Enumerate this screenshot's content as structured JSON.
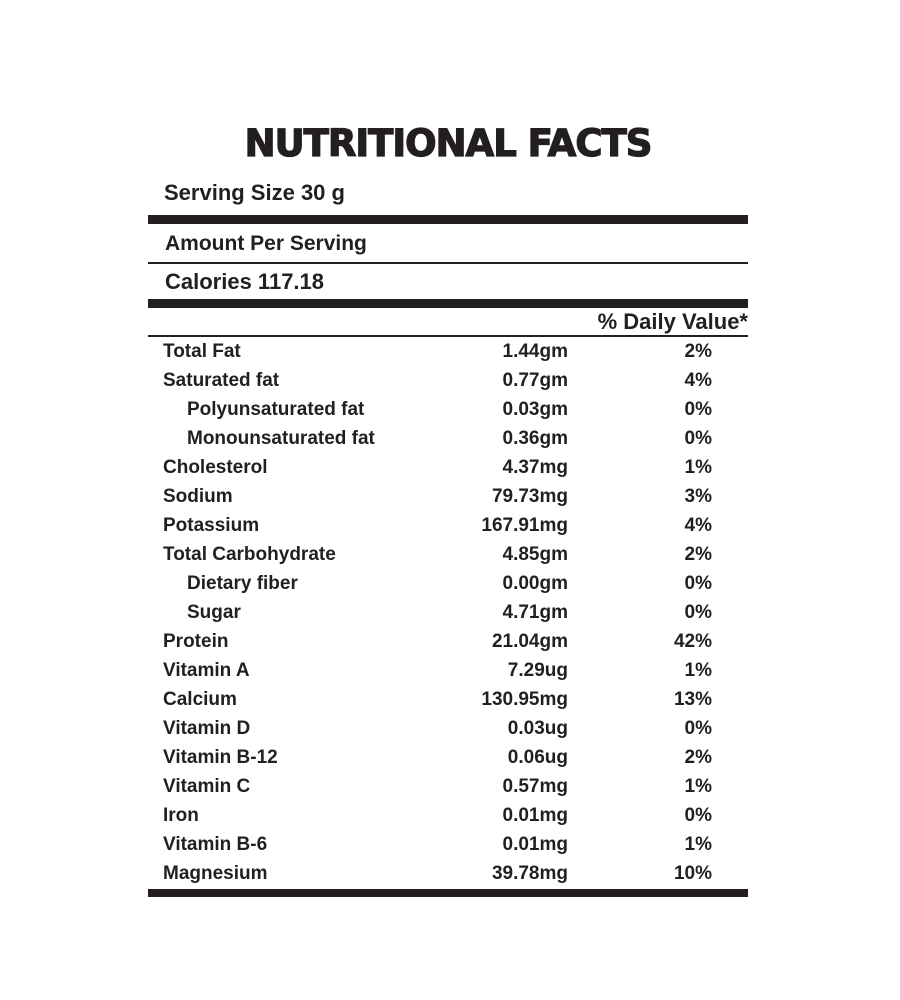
{
  "label": {
    "title": "NUTRITIONAL FACTS",
    "serving_size": "Serving Size 30 g",
    "amount_per_serving": "Amount Per Serving",
    "calories": "Calories 117.18",
    "daily_value_header": "% Daily Value*",
    "rows": [
      {
        "name": "Total Fat",
        "amount": "1.44gm",
        "dv": "2%",
        "indent": false
      },
      {
        "name": "Saturated fat",
        "amount": "0.77gm",
        "dv": "4%",
        "indent": false
      },
      {
        "name": "Polyunsaturated fat",
        "amount": "0.03gm",
        "dv": "0%",
        "indent": true
      },
      {
        "name": "Monounsaturated fat",
        "amount": "0.36gm",
        "dv": "0%",
        "indent": true
      },
      {
        "name": "Cholesterol",
        "amount": "4.37mg",
        "dv": "1%",
        "indent": false
      },
      {
        "name": "Sodium",
        "amount": "79.73mg",
        "dv": "3%",
        "indent": false
      },
      {
        "name": "Potassium",
        "amount": "167.91mg",
        "dv": "4%",
        "indent": false
      },
      {
        "name": "Total Carbohydrate",
        "amount": "4.85gm",
        "dv": "2%",
        "indent": false
      },
      {
        "name": "Dietary fiber",
        "amount": "0.00gm",
        "dv": "0%",
        "indent": true
      },
      {
        "name": "Sugar",
        "amount": "4.71gm",
        "dv": "0%",
        "indent": true
      },
      {
        "name": "Protein",
        "amount": "21.04gm",
        "dv": "42%",
        "indent": false
      },
      {
        "name": "Vitamin A",
        "amount": "7.29ug",
        "dv": "1%",
        "indent": false
      },
      {
        "name": "Calcium",
        "amount": "130.95mg",
        "dv": "13%",
        "indent": false
      },
      {
        "name": "Vitamin D",
        "amount": "0.03ug",
        "dv": "0%",
        "indent": false
      },
      {
        "name": "Vitamin B-12",
        "amount": "0.06ug",
        "dv": "2%",
        "indent": false
      },
      {
        "name": "Vitamin C",
        "amount": "0.57mg",
        "dv": "1%",
        "indent": false
      },
      {
        "name": "Iron",
        "amount": "0.01mg",
        "dv": "0%",
        "indent": false
      },
      {
        "name": "Vitamin B-6",
        "amount": "0.01mg",
        "dv": "1%",
        "indent": false
      },
      {
        "name": "Magnesium",
        "amount": "39.78mg",
        "dv": "10%",
        "indent": false
      }
    ],
    "colors": {
      "ink": "#231f20",
      "background": "#ffffff"
    }
  }
}
